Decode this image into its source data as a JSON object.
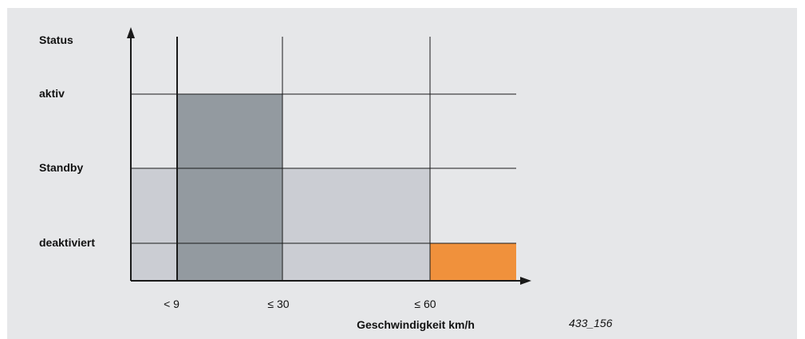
{
  "labels": {
    "y_title": "Status",
    "aktiv": "aktiv",
    "standby": "Standby",
    "deaktiviert": "deaktiviert",
    "x_lt9": "< 9",
    "x_le30": "≤ 30",
    "x_le60": "≤ 60",
    "x_title": "Geschwindigkeit km/h",
    "figure_id": "433_156"
  },
  "colors": {
    "background": "#e6e7e9",
    "light_fill": "#cbcdd3",
    "dark_fill": "#939aa0",
    "accent_orange": "#f0913c",
    "lines": "#1a1a1a"
  }
}
